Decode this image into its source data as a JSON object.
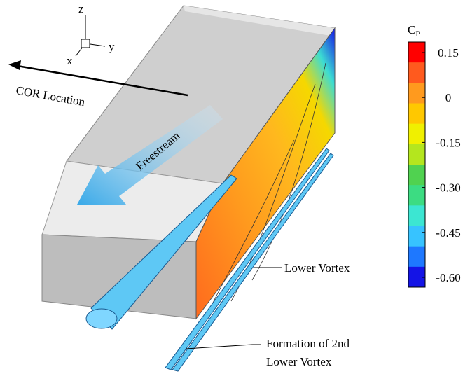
{
  "axes_triad": {
    "z": "z",
    "y": "y",
    "x": "x"
  },
  "annotations": {
    "cor_location": "COR Location",
    "freestream": "Freestream",
    "lower_vortex": "Lower Vortex",
    "second_vortex": [
      "Formation of 2nd",
      "Lower Vortex"
    ]
  },
  "colorbar": {
    "title": {
      "symbol": "C",
      "subscript": "P"
    },
    "colors": [
      "#ff0000",
      "#ff5a1e",
      "#ff9a1e",
      "#ffc800",
      "#f0f000",
      "#b4e61e",
      "#50d250",
      "#3cdc82",
      "#3ce6d2",
      "#37c3ff",
      "#1e78ff",
      "#1414e6"
    ],
    "ticks": [
      "0.15",
      "0",
      "-0.15",
      "-0.30",
      "-0.45",
      "-0.60"
    ]
  }
}
